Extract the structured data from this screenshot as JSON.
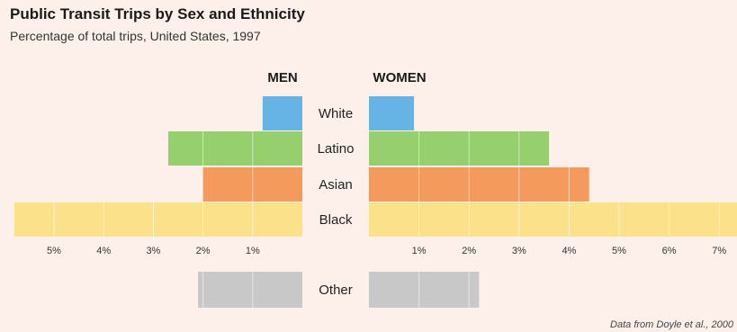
{
  "chart_data": {
    "type": "bar",
    "orientation": "horizontal",
    "layout": "population-pyramid",
    "title": "Public Transit Trips by Sex and Ethnicity",
    "subtitle": "Percentage of total trips, United States, 1997",
    "source": "Data from Doyle et al., 2000",
    "categories": [
      "White",
      "Latino",
      "Asian",
      "Black"
    ],
    "series": [
      {
        "name": "MEN",
        "values": [
          0.8,
          2.7,
          2.0,
          5.8
        ],
        "other": 2.1
      },
      {
        "name": "WOMEN",
        "values": [
          0.9,
          3.6,
          4.4,
          7.5
        ],
        "other": 2.2
      }
    ],
    "other_label": "Other",
    "men_ticks": [
      "5%",
      "4%",
      "3%",
      "2%",
      "1%"
    ],
    "women_ticks": [
      "1%",
      "2%",
      "3%",
      "4%",
      "5%",
      "6%",
      "7%"
    ],
    "colors": {
      "White": "#66b3e6",
      "Latino": "#95cf6e",
      "Asian": "#f39a5c",
      "Black": "#fbe28a",
      "Other": "#c8c8c8",
      "background": "#fdf0ea"
    },
    "grid": true
  }
}
